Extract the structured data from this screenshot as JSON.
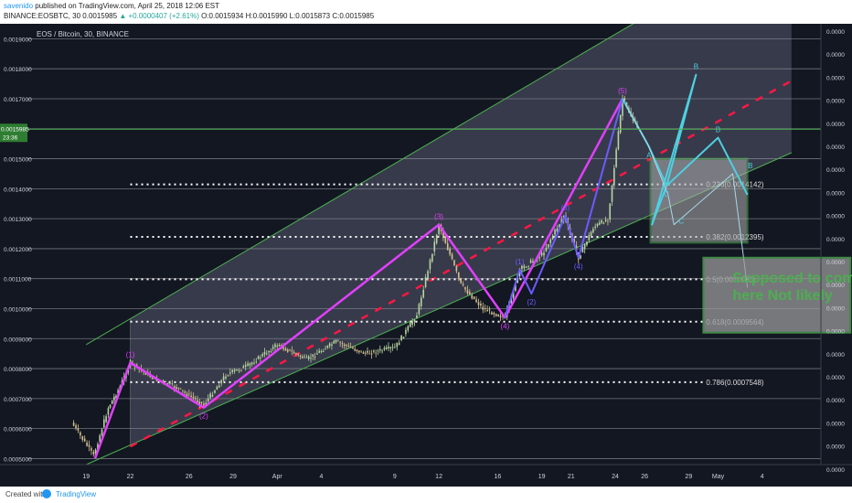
{
  "header": {
    "author": "savenido",
    "published": "published on TradingView.com, April 25, 2018 12:06 EST",
    "symbol": "BINANCE:EOSBTC, 30",
    "price": "0.0015985",
    "change": "▲ +0.0000407 (+2.61%)",
    "ohlc": "O:0.0015934 H:0.0015990 L:0.0015873 C:0.0015985"
  },
  "footer": {
    "created": "Created with",
    "brand": "TradingView"
  },
  "colors": {
    "background": "#131722",
    "grid": "#c0c0c0",
    "price_line": "#4caf50",
    "wave_main": "#e040fb",
    "wave_sub": "#6a5cff",
    "projection": "#4dd0e1",
    "midline": "#ff1744",
    "box": "#4caf50",
    "candle_up": "#b8d4a0",
    "candle_down": "#d4c090"
  },
  "chart_data": {
    "type": "candlestick",
    "title": "EOS / Bitcoin, 30, BINANCE",
    "y_ticks_left": [
      "0.0019000",
      "0.0018000",
      "0.0017000",
      "0.0016000",
      "0.0015000",
      "0.0014000",
      "0.0013000",
      "0.0012000",
      "0.0011000",
      "0.0010000",
      "0.0009000",
      "0.0008000",
      "0.0007000",
      "0.0006000",
      "0.0005000"
    ],
    "y_ticks_right": [
      "0.0000",
      "0.0000",
      "0.0000",
      "0.0000",
      "0.0000",
      "0.0000",
      "0.0000",
      "0.0000",
      "0.0000",
      "0.0000",
      "0.0000",
      "0.0000",
      "0.0000",
      "0.0000",
      "0.0000",
      "0.0000",
      "0.0000",
      "0.0000",
      "0.0000",
      "0.0000"
    ],
    "ylim": [
      0.00048,
      0.00195
    ],
    "x_ticks": [
      {
        "label": "19",
        "date": "2018-03-19"
      },
      {
        "label": "22",
        "date": "2018-03-22"
      },
      {
        "label": "26",
        "date": "2018-03-26"
      },
      {
        "label": "29",
        "date": "2018-03-29"
      },
      {
        "label": "Apr",
        "date": "2018-04-01"
      },
      {
        "label": "4",
        "date": "2018-04-04"
      },
      {
        "label": "9",
        "date": "2018-04-09"
      },
      {
        "label": "12",
        "date": "2018-04-12"
      },
      {
        "label": "16",
        "date": "2018-04-16"
      },
      {
        "label": "19",
        "date": "2018-04-19"
      },
      {
        "label": "21",
        "date": "2018-04-21"
      },
      {
        "label": "24",
        "date": "2018-04-24"
      },
      {
        "label": "26",
        "date": "2018-04-26"
      },
      {
        "label": "29",
        "date": "2018-04-29"
      },
      {
        "label": "May",
        "date": "2018-05-01"
      },
      {
        "label": "4",
        "date": "2018-05-04"
      }
    ],
    "last_price": {
      "value": "0.0015985",
      "time": "23:36",
      "price": 0.0015985
    },
    "price_path": [
      {
        "date": "2018-03-18",
        "price": 0.00062
      },
      {
        "date": "2018-03-19.5",
        "price": 0.00051
      },
      {
        "date": "2018-03-20.5",
        "price": 0.00067
      },
      {
        "date": "2018-03-21.3",
        "price": 0.00074
      },
      {
        "date": "2018-03-22",
        "price": 0.00082
      },
      {
        "date": "2018-03-23.5",
        "price": 0.00077
      },
      {
        "date": "2018-03-25",
        "price": 0.00074
      },
      {
        "date": "2018-03-27",
        "price": 0.00068
      },
      {
        "date": "2018-03-28.5",
        "price": 0.00078
      },
      {
        "date": "2018-03-30",
        "price": 0.00081
      },
      {
        "date": "2018-04-01",
        "price": 0.00088
      },
      {
        "date": "2018-04-03",
        "price": 0.00083
      },
      {
        "date": "2018-04-05",
        "price": 0.00089
      },
      {
        "date": "2018-04-07",
        "price": 0.00085
      },
      {
        "date": "2018-04-09",
        "price": 0.00087
      },
      {
        "date": "2018-04-10.5",
        "price": 0.00098
      },
      {
        "date": "2018-04-12",
        "price": 0.00128
      },
      {
        "date": "2018-04-13.5",
        "price": 0.00108
      },
      {
        "date": "2018-04-15",
        "price": 0.001
      },
      {
        "date": "2018-04-16.5",
        "price": 0.00097
      },
      {
        "date": "2018-04-17.5",
        "price": 0.00113
      },
      {
        "date": "2018-04-19",
        "price": 0.00118
      },
      {
        "date": "2018-04-20.5",
        "price": 0.00131
      },
      {
        "date": "2018-04-21.5",
        "price": 0.00117
      },
      {
        "date": "2018-04-22.5",
        "price": 0.00127
      },
      {
        "date": "2018-04-23.5",
        "price": 0.0013
      },
      {
        "date": "2018-04-24.5",
        "price": 0.0017
      },
      {
        "date": "2018-04-25.5",
        "price": 0.0016
      }
    ],
    "channel": {
      "upper": [
        {
          "date": "2018-03-19",
          "price": 0.00088
        },
        {
          "date": "2018-05-06",
          "price": 0.00226
        }
      ],
      "lower": [
        {
          "date": "2018-03-19",
          "price": 0.00048
        },
        {
          "date": "2018-05-06",
          "price": 0.00152
        }
      ],
      "fill_from": "2018-03-22"
    },
    "midline": [
      {
        "date": "2018-03-22",
        "price": 0.00054
      },
      {
        "date": "2018-05-06",
        "price": 0.00176
      }
    ],
    "wave_main": [
      {
        "date": "2018-03-19.6",
        "price": 0.0005
      },
      {
        "date": "2018-03-22",
        "price": 0.00082
      },
      {
        "date": "2018-03-27",
        "price": 0.00067
      },
      {
        "date": "2018-04-12",
        "price": 0.00128
      },
      {
        "date": "2018-04-16.5",
        "price": 0.00097
      },
      {
        "date": "2018-04-24.5",
        "price": 0.0017
      }
    ],
    "wave_sub": [
      {
        "date": "2018-04-16.5",
        "price": 0.00097
      },
      {
        "date": "2018-04-17.5",
        "price": 0.00113
      },
      {
        "date": "2018-04-18.3",
        "price": 0.00105
      },
      {
        "date": "2018-04-20.6",
        "price": 0.00131
      },
      {
        "date": "2018-04-21.5",
        "price": 0.00117
      },
      {
        "date": "2018-04-24.5",
        "price": 0.0017
      }
    ],
    "projection_main": [
      {
        "date": "2018-04-24.5",
        "price": 0.0017
      },
      {
        "date": "2018-04-26.3",
        "price": 0.00154
      },
      {
        "date": "2018-04-27.5",
        "price": 0.00141
      },
      {
        "date": "2018-04-29.5",
        "price": 0.00178
      },
      {
        "date": "2018-04-26.5",
        "price": 0.00128
      },
      {
        "date": "2018-04-27.5",
        "price": 0.00141
      },
      {
        "date": "2018-05-01",
        "price": 0.00157
      },
      {
        "date": "2018-05-03",
        "price": 0.00138
      }
    ],
    "projection_sub": [
      {
        "date": "2018-04-24.7",
        "price": 0.00168
      },
      {
        "date": "2018-04-26.2",
        "price": 0.00155
      },
      {
        "date": "2018-04-27.6",
        "price": 0.00138
      },
      {
        "date": "2018-04-28",
        "price": 0.00128
      },
      {
        "date": "2018-05-02",
        "price": 0.00145
      },
      {
        "date": "2018-05-03",
        "price": 0.00107
      }
    ],
    "fib_levels": [
      {
        "ratio": "0.236",
        "label": "0.236(0.0014142)",
        "price": 0.0014142
      },
      {
        "ratio": "0.382",
        "label": "0.382(0.0012395)",
        "price": 0.0012395
      },
      {
        "ratio": "0.5",
        "label": "0.5(0.0010980)",
        "price": 0.001098
      },
      {
        "ratio": "0.618",
        "label": "0.618(0.0009564)",
        "price": 0.0009564
      },
      {
        "ratio": "0.786",
        "label": "0.786(0.0007548)",
        "price": 0.0007548
      }
    ],
    "fib_start": "2018-03-22",
    "fib_end": "2018-04-30",
    "target_box": {
      "date_from": "2018-04-26.4",
      "date_to": "2018-05-03",
      "price_from": 0.00122,
      "price_to": 0.0015
    },
    "wave_labels": [
      {
        "text": "(1)",
        "date": "2018-03-22",
        "price": 0.00082,
        "color": "#e040fb",
        "pos": "above"
      },
      {
        "text": "(2)",
        "date": "2018-03-27",
        "price": 0.00067,
        "color": "#e040fb",
        "pos": "below"
      },
      {
        "text": "(3)",
        "date": "2018-04-12",
        "price": 0.00128,
        "color": "#e040fb",
        "pos": "above"
      },
      {
        "text": "(4)",
        "date": "2018-04-16.5",
        "price": 0.00097,
        "color": "#e040fb",
        "pos": "below"
      },
      {
        "text": "(5)",
        "date": "2018-04-24.5",
        "price": 0.0017,
        "color": "#e040fb",
        "pos": "above"
      },
      {
        "text": "(1)",
        "date": "2018-04-17.5",
        "price": 0.00113,
        "color": "#6a5cff",
        "pos": "above"
      },
      {
        "text": "(2)",
        "date": "2018-04-18.3",
        "price": 0.00105,
        "color": "#6a5cff",
        "pos": "below"
      },
      {
        "text": "(3)",
        "date": "2018-04-20.6",
        "price": 0.00131,
        "color": "#6a5cff",
        "pos": "above"
      },
      {
        "text": "(4)",
        "date": "2018-04-21.5",
        "price": 0.00117,
        "color": "#6a5cff",
        "pos": "below"
      },
      {
        "text": "A",
        "date": "2018-04-26.3",
        "price": 0.00154,
        "color": "#4dd0e1",
        "pos": "below"
      },
      {
        "text": "B",
        "date": "2018-04-29.5",
        "price": 0.00178,
        "color": "#4dd0e1",
        "pos": "above"
      },
      {
        "text": "C",
        "date": "2018-04-27.5",
        "price": 0.00141,
        "color": "#4dd0e1",
        "pos": "below"
      },
      {
        "text": "B",
        "date": "2018-05-01",
        "price": 0.00157,
        "color": "#4dd0e1",
        "pos": "above"
      },
      {
        "text": "C",
        "date": "2018-04-28.5",
        "price": 0.00132,
        "color": "#4dd0e1",
        "pos": "below"
      },
      {
        "text": "B",
        "date": "2018-05-03.2",
        "price": 0.00145,
        "color": "#4dd0e1",
        "pos": "above"
      }
    ],
    "annotation": {
      "text": "Supposed to come here Not likely",
      "date_from": "2018-04-30",
      "date_to": "2018-05-10",
      "price_from": 0.00092,
      "price_to": 0.00117
    }
  }
}
